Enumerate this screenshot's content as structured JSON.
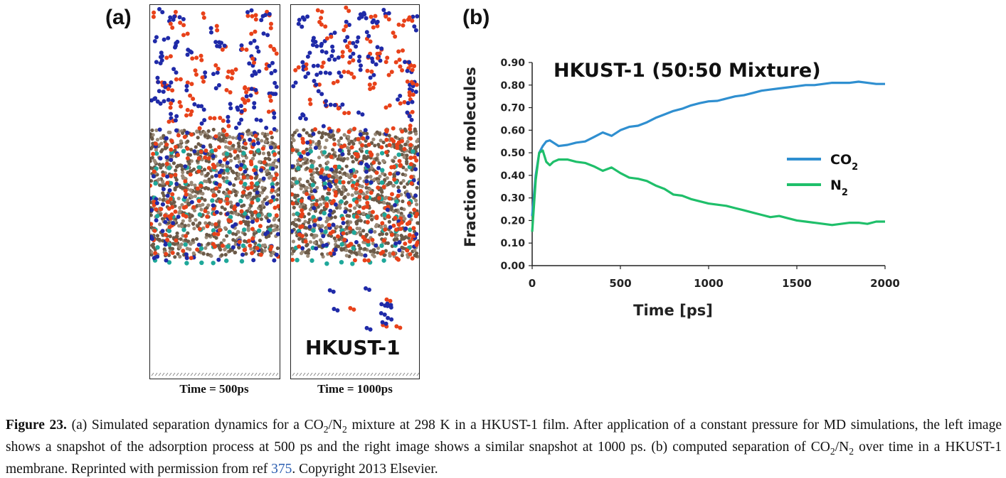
{
  "panel_a_label": "(a)",
  "panel_b_label": "(b)",
  "snapshot_left_caption": "Time = 500ps",
  "snapshot_right_caption": "Time = 1000ps",
  "snapshot_right_label": "HKUST-1",
  "colors": {
    "co2_line": "#2f8fd0",
    "n2_line": "#1fbf6a",
    "n2_molecule": "#1f2aa8",
    "co2_molecule": "#e8421a",
    "framework": "#6b5a48",
    "copper": "#1fa89a"
  },
  "chart_data": {
    "type": "line",
    "title": "HKUST-1 (50:50 Mixture)",
    "xlabel": "Time [ps]",
    "ylabel": "Fraction of molecules",
    "xlim": [
      0,
      2000
    ],
    "ylim": [
      0,
      0.9
    ],
    "xticks": [
      "0",
      "500",
      "1000",
      "1500",
      "2000"
    ],
    "yticks": [
      "0.00",
      "0.10",
      "0.20",
      "0.30",
      "0.40",
      "0.50",
      "0.60",
      "0.70",
      "0.80",
      "0.90"
    ],
    "legend": "right",
    "series": [
      {
        "name": "CO2",
        "color": "#2f8fd0",
        "x": [
          0,
          20,
          40,
          60,
          80,
          100,
          120,
          150,
          200,
          250,
          300,
          350,
          400,
          450,
          500,
          550,
          600,
          650,
          700,
          750,
          800,
          850,
          900,
          950,
          1000,
          1050,
          1100,
          1150,
          1200,
          1250,
          1300,
          1350,
          1400,
          1450,
          1500,
          1550,
          1600,
          1650,
          1700,
          1750,
          1800,
          1850,
          1900,
          1950,
          2000
        ],
        "y": [
          0.22,
          0.4,
          0.5,
          0.53,
          0.55,
          0.555,
          0.545,
          0.53,
          0.535,
          0.545,
          0.55,
          0.57,
          0.59,
          0.575,
          0.6,
          0.615,
          0.62,
          0.635,
          0.655,
          0.67,
          0.685,
          0.695,
          0.71,
          0.72,
          0.728,
          0.73,
          0.74,
          0.75,
          0.755,
          0.765,
          0.775,
          0.78,
          0.785,
          0.79,
          0.795,
          0.8,
          0.8,
          0.805,
          0.81,
          0.81,
          0.81,
          0.815,
          0.81,
          0.805,
          0.805
        ]
      },
      {
        "name": "N2",
        "color": "#1fbf6a",
        "x": [
          0,
          20,
          40,
          60,
          80,
          100,
          120,
          150,
          200,
          250,
          300,
          350,
          400,
          450,
          500,
          550,
          600,
          650,
          700,
          750,
          800,
          850,
          900,
          950,
          1000,
          1050,
          1100,
          1150,
          1200,
          1250,
          1300,
          1350,
          1400,
          1450,
          1500,
          1550,
          1600,
          1650,
          1700,
          1750,
          1800,
          1850,
          1900,
          1950,
          2000
        ],
        "y": [
          0.15,
          0.38,
          0.5,
          0.51,
          0.46,
          0.445,
          0.46,
          0.47,
          0.47,
          0.46,
          0.455,
          0.44,
          0.42,
          0.435,
          0.41,
          0.39,
          0.385,
          0.375,
          0.355,
          0.34,
          0.315,
          0.31,
          0.295,
          0.285,
          0.275,
          0.27,
          0.265,
          0.255,
          0.245,
          0.235,
          0.225,
          0.215,
          0.22,
          0.21,
          0.2,
          0.195,
          0.19,
          0.185,
          0.18,
          0.185,
          0.19,
          0.19,
          0.185,
          0.195,
          0.195
        ]
      }
    ],
    "legend_labels": {
      "co2_main": "CO",
      "co2_sub": "2",
      "n2_main": "N",
      "n2_sub": "2"
    }
  },
  "caption": {
    "fig_label": "Figure 23.",
    "p1": " (a) Simulated separation dynamics for a CO",
    "sub1": "2",
    "p2": "/N",
    "sub2": "2",
    "p3": " mixture at 298 K in a HKUST-1 film. After application of a constant pressure for MD simulations, the left image shows a snapshot of the adsorption process at 500 ps and the right image shows a similar snapshot at 1000 ps. (b) computed separation of CO",
    "sub3": "2",
    "p4": "/N",
    "sub4": "2",
    "p5": " over time in a HKUST-1 membrane. Reprinted with permission from ref ",
    "ref": "375",
    "p6": ". Copyright 2013 Elsevier."
  }
}
